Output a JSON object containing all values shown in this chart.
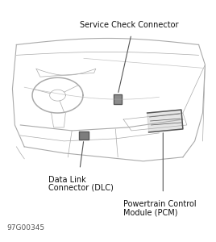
{
  "bg_color": "#ffffff",
  "line_color": "#aaaaaa",
  "text_color": "#111111",
  "fig_id": "97G00345",
  "labels": {
    "service_check": "Service Check Connector",
    "dlc_line1": "Data Link",
    "dlc_line2": "Connector (DLC)",
    "pcm_line1": "Powertrain Control",
    "pcm_line2": "Module (PCM)"
  },
  "annotation_line_color": "#555555",
  "dark_element_color": "#555555",
  "font_size": 7.0,
  "fig_id_font_size": 6.5,
  "lw_body": 0.8,
  "lw_detail": 0.5
}
